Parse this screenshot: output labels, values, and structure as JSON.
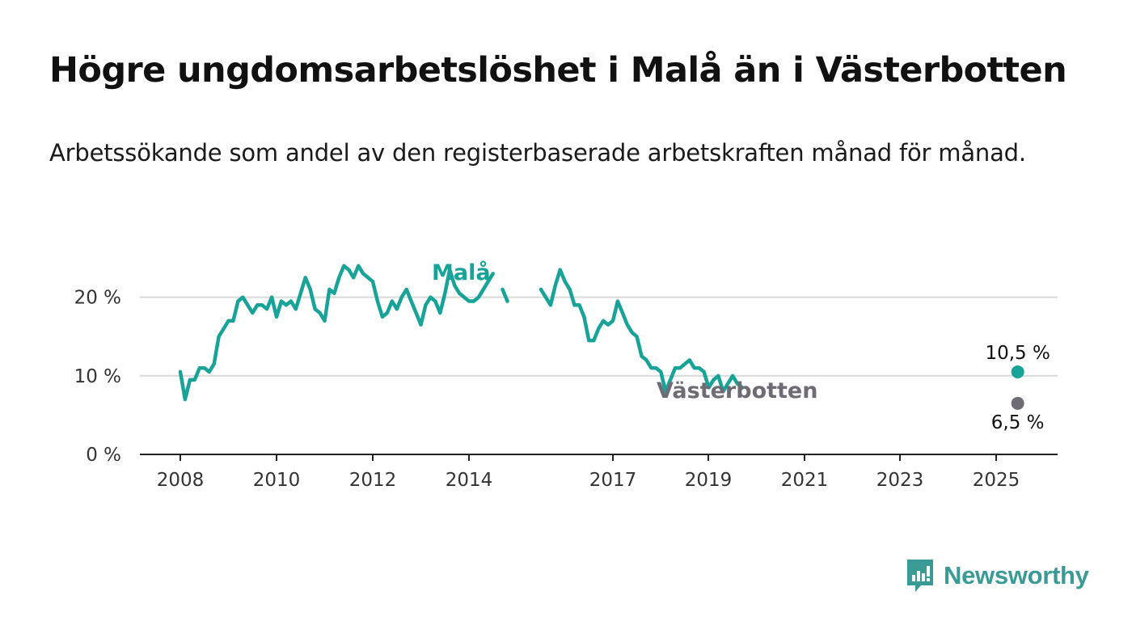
{
  "title": "Högre ungdomsarbetslöshet i Malå än i Västerbotten",
  "subtitle": "Arbetssökande som andel av den registerbaserade arbetskraften månad för månad.",
  "brand": "Newsworthy",
  "colors": {
    "mala": "#17a398",
    "vasterbotten": "#6f6b75",
    "grid": "#d9d9d9",
    "axis": "#222222"
  },
  "chart_data": {
    "type": "line",
    "x_ticks": [
      "2008",
      "2010",
      "2012",
      "2014",
      "2017",
      "2019",
      "2021",
      "2023",
      "2025"
    ],
    "y_ticks": [
      "0 %",
      "10 %",
      "20 %"
    ],
    "ylim": [
      0,
      25
    ],
    "grid": true,
    "series": [
      {
        "name": "Malå",
        "color": "#17a398",
        "end_label": "10,5 %",
        "points": [
          [
            2008.0,
            10.5
          ],
          [
            2008.1,
            7.0
          ],
          [
            2008.2,
            9.5
          ],
          [
            2008.3,
            9.5
          ],
          [
            2008.4,
            11.0
          ],
          [
            2008.5,
            11.0
          ],
          [
            2008.6,
            10.5
          ],
          [
            2008.7,
            11.5
          ],
          [
            2008.8,
            15.0
          ],
          [
            2008.9,
            16.0
          ],
          [
            2009.0,
            17.0
          ],
          [
            2009.1,
            17.0
          ],
          [
            2009.2,
            19.5
          ],
          [
            2009.3,
            20.0
          ],
          [
            2009.4,
            19.0
          ],
          [
            2009.5,
            18.0
          ],
          [
            2009.6,
            19.0
          ],
          [
            2009.7,
            19.0
          ],
          [
            2009.8,
            18.5
          ],
          [
            2009.9,
            20.0
          ],
          [
            2010.0,
            17.5
          ],
          [
            2010.1,
            19.5
          ],
          [
            2010.2,
            19.0
          ],
          [
            2010.3,
            19.5
          ],
          [
            2010.4,
            18.5
          ],
          [
            2010.5,
            20.5
          ],
          [
            2010.6,
            22.5
          ],
          [
            2010.7,
            21.0
          ],
          [
            2010.8,
            18.5
          ],
          [
            2010.9,
            18.0
          ],
          [
            2011.0,
            17.0
          ],
          [
            2011.1,
            21.0
          ],
          [
            2011.2,
            20.5
          ],
          [
            2011.3,
            22.5
          ],
          [
            2011.4,
            24.0
          ],
          [
            2011.5,
            23.5
          ],
          [
            2011.6,
            22.5
          ],
          [
            2011.7,
            24.0
          ],
          [
            2011.8,
            23.0
          ],
          [
            2011.9,
            22.5
          ],
          [
            2012.0,
            22.0
          ],
          [
            2012.1,
            19.5
          ],
          [
            2012.2,
            17.5
          ],
          [
            2012.3,
            18.0
          ],
          [
            2012.4,
            19.5
          ],
          [
            2012.5,
            18.5
          ],
          [
            2012.6,
            20.0
          ],
          [
            2012.7,
            21.0
          ],
          [
            2012.8,
            19.5
          ],
          [
            2012.9,
            18.0
          ],
          [
            2013.0,
            16.5
          ],
          [
            2013.1,
            19.0
          ],
          [
            2013.2,
            20.0
          ],
          [
            2013.3,
            19.5
          ],
          [
            2013.4,
            18.0
          ],
          [
            2013.5,
            20.5
          ],
          [
            2013.6,
            23.5
          ],
          [
            2013.7,
            21.5
          ],
          [
            2013.8,
            20.5
          ],
          [
            2013.9,
            20.0
          ],
          [
            2014.0,
            19.5
          ],
          [
            2014.1,
            19.5
          ],
          [
            2014.2,
            20.0
          ],
          [
            2014.3,
            21.0
          ],
          [
            2014.4,
            22.0
          ],
          [
            2014.5,
            23.0
          ],
          [
            2014.6,
            null
          ],
          [
            2014.7,
            21.0
          ],
          [
            2014.8,
            19.5
          ],
          [
            2014.9,
            null
          ],
          [
            2015.0,
            null
          ],
          [
            2015.1,
            null
          ],
          [
            2015.2,
            null
          ],
          [
            2015.3,
            null
          ],
          [
            2015.4,
            null
          ],
          [
            2015.5,
            21.0
          ],
          [
            2015.6,
            20.0
          ],
          [
            2015.7,
            19.0
          ],
          [
            2015.8,
            21.5
          ],
          [
            2015.9,
            23.5
          ],
          [
            2016.0,
            22.0
          ],
          [
            2016.1,
            21.0
          ],
          [
            2016.2,
            19.0
          ],
          [
            2016.3,
            19.0
          ],
          [
            2016.4,
            17.5
          ],
          [
            2016.5,
            14.5
          ],
          [
            2016.6,
            14.5
          ],
          [
            2016.7,
            16.0
          ],
          [
            2016.8,
            17.0
          ],
          [
            2016.9,
            16.5
          ],
          [
            2017.0,
            17.0
          ],
          [
            2017.1,
            19.5
          ],
          [
            2017.2,
            18.0
          ],
          [
            2017.3,
            16.5
          ],
          [
            2017.4,
            15.5
          ],
          [
            2017.5,
            15.0
          ],
          [
            2017.6,
            12.5
          ],
          [
            2017.7,
            12.0
          ],
          [
            2017.8,
            11.0
          ],
          [
            2017.9,
            11.0
          ],
          [
            2018.0,
            10.5
          ],
          [
            2018.1,
            8.0
          ],
          [
            2018.2,
            9.5
          ],
          [
            2018.3,
            11.0
          ],
          [
            2018.4,
            11.0
          ],
          [
            2018.5,
            11.5
          ],
          [
            2018.6,
            12.0
          ],
          [
            2018.7,
            11.0
          ],
          [
            2018.8,
            11.0
          ],
          [
            2018.9,
            10.5
          ],
          [
            2019.0,
            8.5
          ],
          [
            2019.1,
            9.5
          ],
          [
            2019.2,
            10.0
          ],
          [
            2019.3,
            8.0
          ],
          [
            2019.4,
            9.0
          ],
          [
            2019.5,
            10.0
          ],
          [
            2019.6,
            9.0
          ],
          [
            2019.7,
            8.5
          ]
        ]
      },
      {
        "name": "Västerbotten",
        "color": "#6f6b75",
        "end_label": "6,5 %",
        "points": []
      }
    ]
  }
}
